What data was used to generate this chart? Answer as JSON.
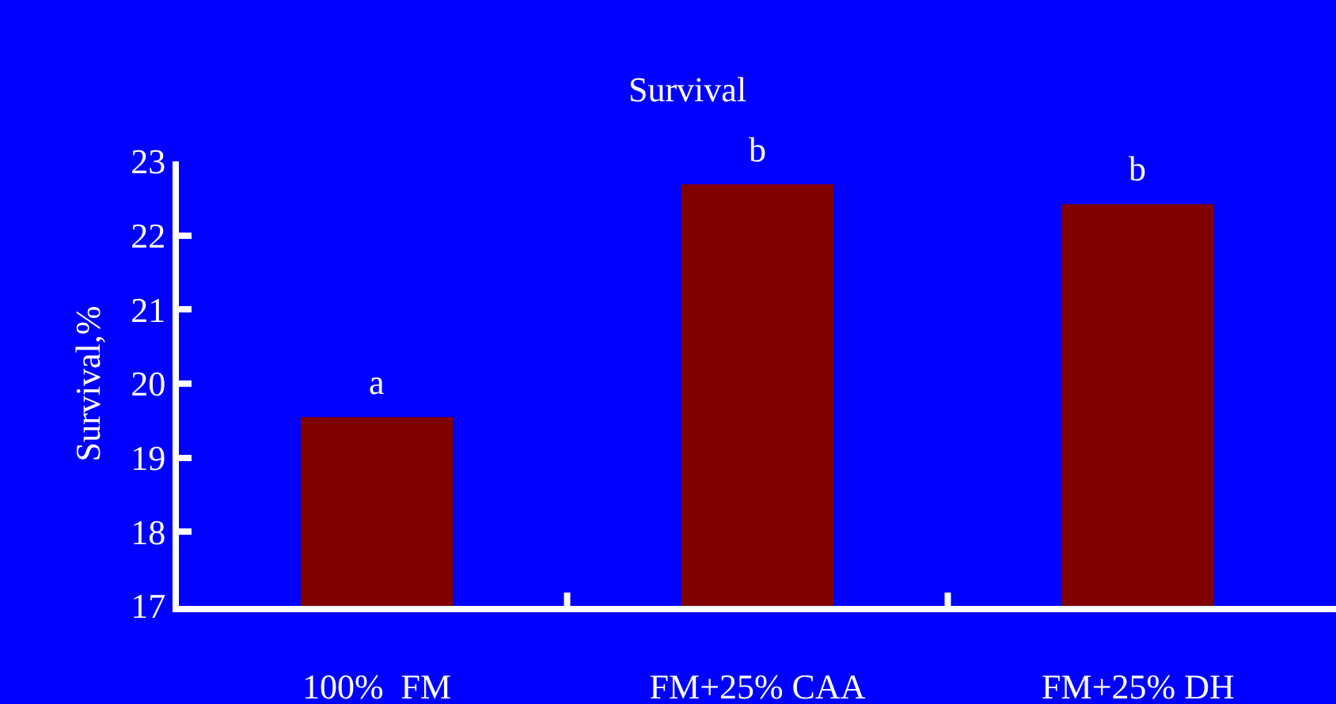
{
  "chart_data": {
    "type": "bar",
    "title": "Survival",
    "ylabel": "Survival,%",
    "categories": [
      "100%  FM",
      "FM+25% CAA",
      "FM+25% DH"
    ],
    "values": [
      19.55,
      22.69,
      22.42
    ],
    "color": "#800000",
    "ylim": [
      17,
      23
    ],
    "yticks": [
      17,
      18,
      19,
      20,
      21,
      22,
      23
    ],
    "grid": false,
    "legend": false,
    "annotations": [
      {
        "text": "a",
        "x": "100%  FM",
        "y": 19.55
      },
      {
        "text": "b",
        "x": "FM+25% CAA",
        "y": 22.69
      },
      {
        "text": "b",
        "x": "FM+25% DH",
        "y": 22.42
      }
    ]
  }
}
